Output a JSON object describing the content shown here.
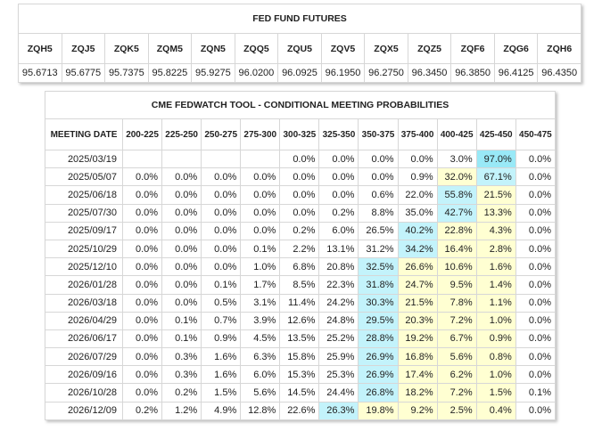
{
  "futures": {
    "title": "FED FUND FUTURES",
    "columns": [
      {
        "code": "ZQH5",
        "price": "95.6713"
      },
      {
        "code": "ZQJ5",
        "price": "95.6775"
      },
      {
        "code": "ZQK5",
        "price": "95.7375"
      },
      {
        "code": "ZQM5",
        "price": "95.8225"
      },
      {
        "code": "ZQN5",
        "price": "95.9275"
      },
      {
        "code": "ZQQ5",
        "price": "96.0200"
      },
      {
        "code": "ZQU5",
        "price": "96.0925"
      },
      {
        "code": "ZQV5",
        "price": "96.1950"
      },
      {
        "code": "ZQX5",
        "price": "96.2750"
      },
      {
        "code": "ZQZ5",
        "price": "96.3450"
      },
      {
        "code": "ZQF6",
        "price": "96.3850"
      },
      {
        "code": "ZQG6",
        "price": "96.4125"
      },
      {
        "code": "ZQH6",
        "price": "96.4350"
      }
    ]
  },
  "fedwatch": {
    "title": "CME FEDWATCH TOOL - CONDITIONAL MEETING PROBABILITIES",
    "date_header": "MEETING DATE",
    "ranges": [
      "200-225",
      "225-250",
      "250-275",
      "275-300",
      "300-325",
      "325-350",
      "350-375",
      "375-400",
      "400-425",
      "425-450",
      "450-475"
    ],
    "colors": {
      "yellow": "#ffffd2",
      "cyan": "#c3f3fb",
      "cyan_strong": "#99e9f7",
      "border": "#d7d7d7"
    },
    "rows": [
      {
        "date": "2025/03/19",
        "cells": [
          "",
          "",
          "",
          "",
          "0.0%",
          "0.0%",
          "0.0%",
          "0.0%",
          "3.0%",
          "97.0%",
          "0.0%"
        ]
      },
      {
        "date": "2025/05/07",
        "cells": [
          "0.0%",
          "0.0%",
          "0.0%",
          "0.0%",
          "0.0%",
          "0.0%",
          "0.0%",
          "0.9%",
          "32.0%",
          "67.1%",
          "0.0%"
        ]
      },
      {
        "date": "2025/06/18",
        "cells": [
          "0.0%",
          "0.0%",
          "0.0%",
          "0.0%",
          "0.0%",
          "0.0%",
          "0.6%",
          "22.0%",
          "55.8%",
          "21.5%",
          "0.0%"
        ]
      },
      {
        "date": "2025/07/30",
        "cells": [
          "0.0%",
          "0.0%",
          "0.0%",
          "0.0%",
          "0.0%",
          "0.2%",
          "8.8%",
          "35.0%",
          "42.7%",
          "13.3%",
          "0.0%"
        ]
      },
      {
        "date": "2025/09/17",
        "cells": [
          "0.0%",
          "0.0%",
          "0.0%",
          "0.0%",
          "0.2%",
          "6.0%",
          "26.5%",
          "40.2%",
          "22.8%",
          "4.3%",
          "0.0%"
        ]
      },
      {
        "date": "2025/10/29",
        "cells": [
          "0.0%",
          "0.0%",
          "0.0%",
          "0.1%",
          "2.2%",
          "13.1%",
          "31.2%",
          "34.2%",
          "16.4%",
          "2.8%",
          "0.0%"
        ]
      },
      {
        "date": "2025/12/10",
        "cells": [
          "0.0%",
          "0.0%",
          "0.0%",
          "1.0%",
          "6.8%",
          "20.8%",
          "32.5%",
          "26.6%",
          "10.6%",
          "1.6%",
          "0.0%"
        ]
      },
      {
        "date": "2026/01/28",
        "cells": [
          "0.0%",
          "0.0%",
          "0.1%",
          "1.7%",
          "8.5%",
          "22.3%",
          "31.8%",
          "24.7%",
          "9.5%",
          "1.4%",
          "0.0%"
        ]
      },
      {
        "date": "2026/03/18",
        "cells": [
          "0.0%",
          "0.0%",
          "0.5%",
          "3.1%",
          "11.4%",
          "24.2%",
          "30.3%",
          "21.5%",
          "7.8%",
          "1.1%",
          "0.0%"
        ]
      },
      {
        "date": "2026/04/29",
        "cells": [
          "0.0%",
          "0.1%",
          "0.7%",
          "3.9%",
          "12.6%",
          "24.8%",
          "29.5%",
          "20.3%",
          "7.2%",
          "1.0%",
          "0.0%"
        ]
      },
      {
        "date": "2026/06/17",
        "cells": [
          "0.0%",
          "0.1%",
          "0.9%",
          "4.5%",
          "13.5%",
          "25.2%",
          "28.8%",
          "19.2%",
          "6.7%",
          "0.9%",
          "0.0%"
        ]
      },
      {
        "date": "2026/07/29",
        "cells": [
          "0.0%",
          "0.3%",
          "1.6%",
          "6.3%",
          "15.8%",
          "25.9%",
          "26.9%",
          "16.8%",
          "5.6%",
          "0.8%",
          "0.0%"
        ]
      },
      {
        "date": "2026/09/16",
        "cells": [
          "0.0%",
          "0.3%",
          "1.6%",
          "6.0%",
          "15.3%",
          "25.3%",
          "26.9%",
          "17.4%",
          "6.2%",
          "1.0%",
          "0.0%"
        ]
      },
      {
        "date": "2026/10/28",
        "cells": [
          "0.0%",
          "0.2%",
          "1.5%",
          "5.6%",
          "14.5%",
          "24.4%",
          "26.8%",
          "18.2%",
          "7.2%",
          "1.5%",
          "0.1%"
        ]
      },
      {
        "date": "2026/12/09",
        "cells": [
          "0.2%",
          "1.2%",
          "4.9%",
          "12.8%",
          "22.6%",
          "26.3%",
          "19.8%",
          "9.2%",
          "2.5%",
          "0.4%",
          "0.0%"
        ]
      }
    ],
    "highlights": [
      {
        "yellow": [],
        "cyan": [
          9
        ]
      },
      {
        "yellow": [
          8
        ],
        "cyan": [
          9
        ]
      },
      {
        "yellow": [
          9
        ],
        "cyan": [
          8
        ]
      },
      {
        "yellow": [
          9
        ],
        "cyan": [
          8
        ]
      },
      {
        "yellow": [
          8,
          9
        ],
        "cyan": [
          7
        ]
      },
      {
        "yellow": [
          8,
          9
        ],
        "cyan": [
          7
        ]
      },
      {
        "yellow": [
          7,
          8,
          9
        ],
        "cyan": [
          6
        ]
      },
      {
        "yellow": [
          7,
          8,
          9
        ],
        "cyan": [
          6
        ]
      },
      {
        "yellow": [
          7,
          8,
          9
        ],
        "cyan": [
          6
        ]
      },
      {
        "yellow": [
          7,
          8,
          9
        ],
        "cyan": [
          6
        ]
      },
      {
        "yellow": [
          7,
          8,
          9
        ],
        "cyan": [
          6
        ]
      },
      {
        "yellow": [
          7,
          8,
          9
        ],
        "cyan": [
          6
        ]
      },
      {
        "yellow": [
          7,
          8,
          9
        ],
        "cyan": [
          6
        ]
      },
      {
        "yellow": [
          7,
          8,
          9
        ],
        "cyan": [
          6
        ]
      },
      {
        "yellow": [
          6,
          7,
          8,
          9
        ],
        "cyan": [
          5
        ]
      }
    ]
  }
}
